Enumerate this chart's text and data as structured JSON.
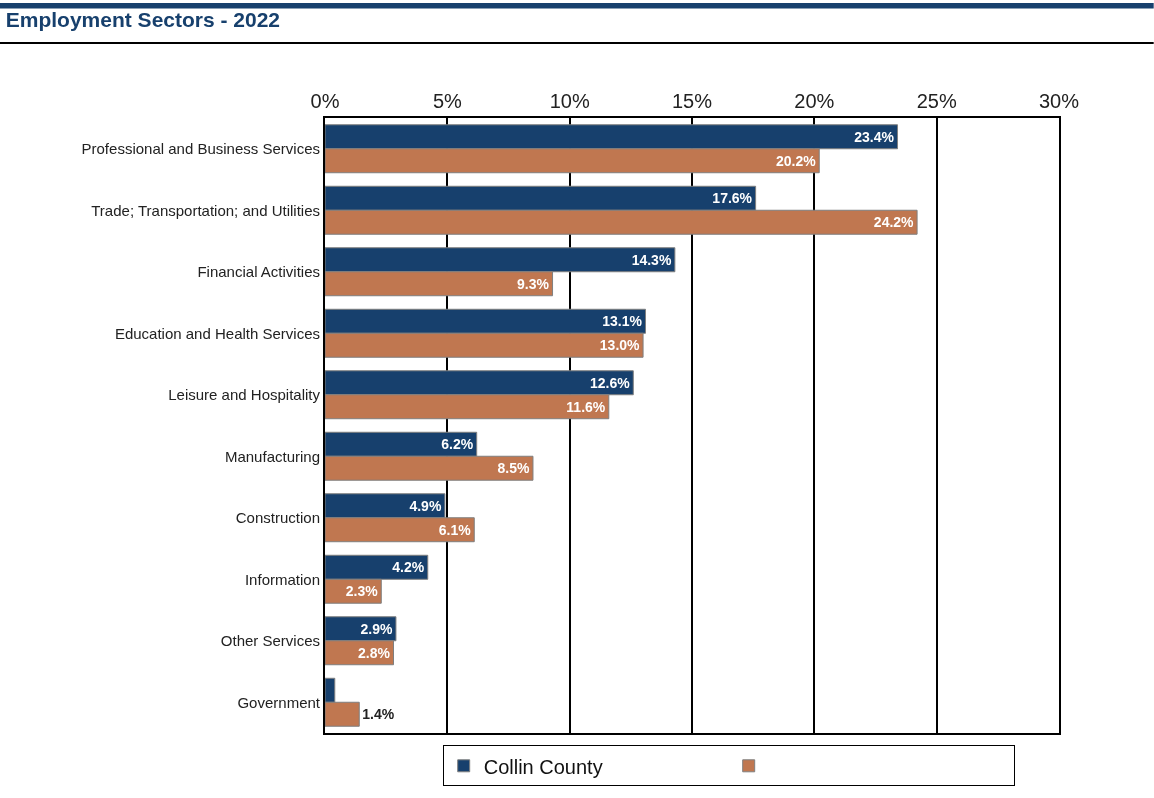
{
  "chart_data": {
    "type": "bar",
    "orientation": "horizontal",
    "title": "Employment Sectors - 2022",
    "categories": [
      "Professional and Business Services",
      "Trade; Transportation; and Utilities",
      "Financial Activities",
      "Education and Health Services",
      "Leisure and Hospitality",
      "Manufacturing",
      "Construction",
      "Information",
      "Other Services",
      "Government"
    ],
    "series": [
      {
        "name": "Collin County",
        "color": "#17406d",
        "values": [
          23.4,
          17.6,
          14.3,
          13.1,
          12.6,
          6.2,
          4.9,
          4.2,
          2.9,
          0.4
        ],
        "value_labels": [
          "23.4%",
          "17.6%",
          "14.3%",
          "13.1%",
          "12.6%",
          "6.2%",
          "4.9%",
          "4.2%",
          "2.9%",
          null
        ]
      },
      {
        "color": "#c07750",
        "values": [
          20.2,
          24.2,
          9.3,
          13.0,
          11.6,
          8.5,
          6.1,
          2.3,
          2.8,
          1.4
        ],
        "value_labels": [
          "20.2%",
          "24.2%",
          "9.3%",
          "13.0%",
          "11.6%",
          "8.5%",
          "6.1%",
          "2.3%",
          "2.8%",
          "1.4%"
        ]
      }
    ],
    "xlim": [
      0,
      30
    ],
    "xticks": [
      {
        "value": 0,
        "label": "0%"
      },
      {
        "value": 5,
        "label": "5%"
      },
      {
        "value": 10,
        "label": "10%"
      },
      {
        "value": 15,
        "label": "15%"
      },
      {
        "value": 20,
        "label": "20%"
      },
      {
        "value": 25,
        "label": "25%"
      },
      {
        "value": 30,
        "label": "30%"
      }
    ],
    "grid": "x",
    "legend": "bottom"
  }
}
